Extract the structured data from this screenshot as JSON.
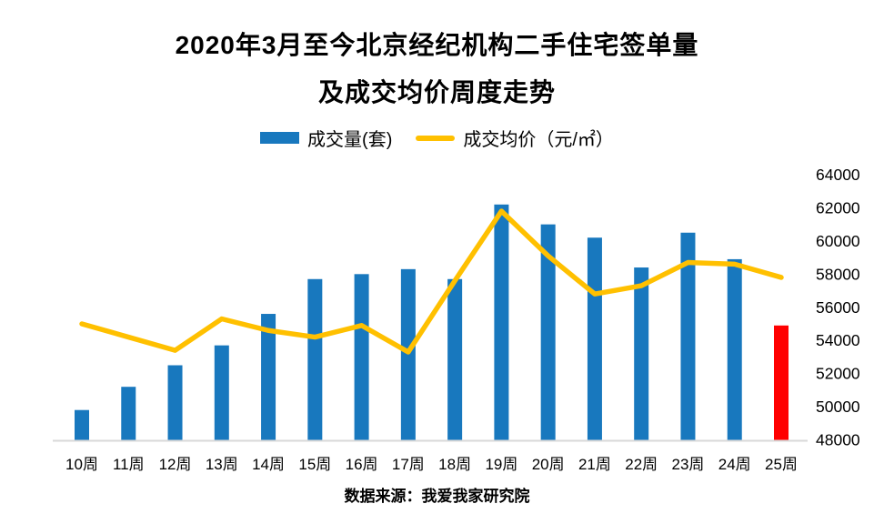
{
  "title": {
    "line1": "2020年3月至今北京经纪机构二手住宅签单量",
    "line2": "及成交均价周度走势"
  },
  "legend": {
    "items": [
      {
        "label": "成交量(套)",
        "swatch": "bar-swatch",
        "color": "#1878BE"
      },
      {
        "label": "成交均价（元/㎡）",
        "swatch": "line-swatch",
        "color": "#FFC000"
      }
    ]
  },
  "footer": {
    "source": "数据来源：我爱我家研究院"
  },
  "colors": {
    "bar": "#1878BE",
    "bar_highlight": "#FF0000",
    "line": "#FFC000",
    "axis_line": "#D9D9D9",
    "text": "#000000",
    "background": "#FFFFFF"
  },
  "chart_data": {
    "type": "combo bar + line",
    "categories": [
      "10周",
      "11周",
      "12周",
      "13周",
      "14周",
      "15周",
      "16周",
      "17周",
      "18周",
      "19周",
      "20周",
      "21周",
      "22周",
      "23周",
      "24周",
      "25周"
    ],
    "series": [
      {
        "name": "成交量(套)",
        "type": "bar",
        "axis": "hidden-left (no visible scale for volume)",
        "values_right_axis_equivalent": [
          49800,
          51200,
          52500,
          53700,
          55600,
          57700,
          58000,
          58300,
          57700,
          62200,
          61000,
          60200,
          58400,
          60500,
          58900,
          54900
        ],
        "highlight_index": 15,
        "highlight_color": "#FF0000",
        "color": "#1878BE"
      },
      {
        "name": "成交均价（元/㎡）",
        "type": "line",
        "axis": "right",
        "values": [
          55000,
          54200,
          53400,
          55300,
          54600,
          54200,
          54900,
          53300,
          57600,
          61800,
          59100,
          56800,
          57300,
          58700,
          58600,
          57800
        ],
        "color": "#FFC000"
      }
    ],
    "y_axis_right": {
      "min": 48000,
      "max": 64000,
      "step": 2000,
      "tick_labels": [
        "64000",
        "62000",
        "60000",
        "58000",
        "56000",
        "54000",
        "52000",
        "50000",
        "48000"
      ]
    },
    "grid": false,
    "legend_position": "top-center",
    "title": "2020年3月至今北京经纪机构二手住宅签单量 及成交均价周度走势",
    "source_note": "数据来源：我爱我家研究院"
  }
}
